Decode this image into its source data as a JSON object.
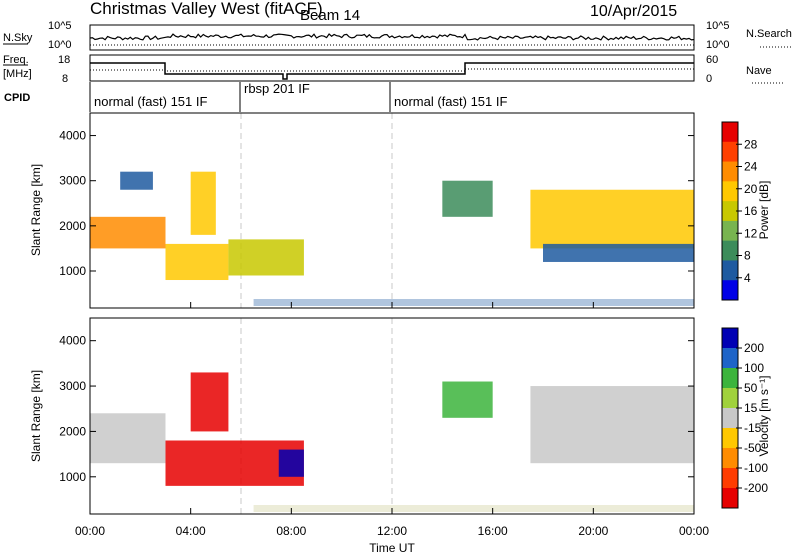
{
  "header": {
    "station": "Christmas Valley West (fitACF)",
    "beam": "Beam 14",
    "date": "10/Apr/2015"
  },
  "params": {
    "nsky_label": "N.Sky",
    "nsearch_label": "N.Search",
    "freq_label_1": "Freq.",
    "freq_label_2": "[MHz]",
    "nave_label": "Nave",
    "cpid_label": "CPID",
    "nsky_ticks": [
      "10^5",
      "10^0"
    ],
    "nsearch_ticks": [
      "10^5",
      "10^0"
    ],
    "freq_ticks": [
      "18",
      "8"
    ],
    "nave_ticks": [
      "60",
      "0"
    ]
  },
  "cpid_segments": [
    {
      "start": 0,
      "end": 6,
      "label": "normal (fast) 151 IF"
    },
    {
      "start": 6,
      "end": 12,
      "label": "rbsp 201 IF"
    },
    {
      "start": 12,
      "end": 24,
      "label": "normal (fast) 151 IF"
    }
  ],
  "x_axis": {
    "label": "Time UT",
    "ticks": [
      "00:00",
      "04:00",
      "08:00",
      "12:00",
      "16:00",
      "20:00",
      "00:00"
    ],
    "range_hours": [
      0,
      24
    ]
  },
  "colorbars": {
    "power": {
      "label": "Power [dB]",
      "ticks": [
        "28",
        "24",
        "20",
        "16",
        "12",
        "8",
        "4"
      ],
      "colors": [
        "#e60000",
        "#ff4000",
        "#ff8c00",
        "#ffc800",
        "#c8c800",
        "#78b450",
        "#3c8c5a",
        "#1e5aa0",
        "#0000e6"
      ]
    },
    "velocity": {
      "label": "Velocity [m s⁻¹]",
      "ticks": [
        "200",
        "100",
        "50",
        "15",
        "-15",
        "-50",
        "-100",
        "-200"
      ],
      "colors": [
        "#0000b4",
        "#1e64c8",
        "#3cb43c",
        "#a0d23c",
        "#c8c8c8",
        "#ffc800",
        "#ff8c00",
        "#ff3c00",
        "#e60000"
      ]
    }
  },
  "chart_data": [
    {
      "type": "heatmap",
      "title": "",
      "ylabel": "Slant Range [km]",
      "xlabel": "Time UT",
      "ylim": [
        180,
        4500
      ],
      "yticks": [
        1000,
        2000,
        3000,
        4000
      ],
      "colorbar": "Power [dB]",
      "regions": [
        {
          "t": [
            0.0,
            3.0
          ],
          "r": [
            1500,
            2200
          ],
          "power_db": 22
        },
        {
          "t": [
            1.2,
            2.5
          ],
          "r": [
            2800,
            3200
          ],
          "power_db": 8
        },
        {
          "t": [
            3.0,
            5.5
          ],
          "r": [
            800,
            1600
          ],
          "power_db": 20
        },
        {
          "t": [
            4.0,
            5.0
          ],
          "r": [
            1800,
            3200
          ],
          "power_db": 18
        },
        {
          "t": [
            5.5,
            8.5
          ],
          "r": [
            900,
            1700
          ],
          "power_db": 16
        },
        {
          "t": [
            14.0,
            16.0
          ],
          "r": [
            2200,
            3000
          ],
          "power_db": 10
        },
        {
          "t": [
            17.5,
            24.0
          ],
          "r": [
            1500,
            2800
          ],
          "power_db": 18
        },
        {
          "t": [
            18.0,
            24.0
          ],
          "r": [
            1200,
            1600
          ],
          "power_db": 6
        }
      ]
    },
    {
      "type": "heatmap",
      "title": "",
      "ylabel": "Slant Range [km]",
      "xlabel": "Time UT",
      "ylim": [
        180,
        4500
      ],
      "yticks": [
        1000,
        2000,
        3000,
        4000
      ],
      "colorbar": "Velocity [m s⁻¹]",
      "regions": [
        {
          "t": [
            0.0,
            3.0
          ],
          "r": [
            1300,
            2400
          ],
          "velocity": 0
        },
        {
          "t": [
            3.0,
            8.5
          ],
          "r": [
            800,
            1800
          ],
          "velocity": -200
        },
        {
          "t": [
            4.0,
            5.5
          ],
          "r": [
            2000,
            3300
          ],
          "velocity": -200
        },
        {
          "t": [
            7.5,
            8.5
          ],
          "r": [
            1000,
            1600
          ],
          "velocity": 150
        },
        {
          "t": [
            14.0,
            16.0
          ],
          "r": [
            2300,
            3100
          ],
          "velocity": 50
        },
        {
          "t": [
            17.5,
            24.0
          ],
          "r": [
            1300,
            3000
          ],
          "velocity": 0
        }
      ]
    }
  ]
}
